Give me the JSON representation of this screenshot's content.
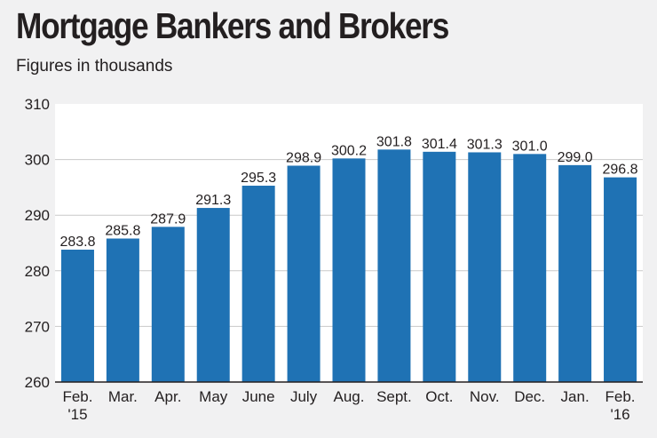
{
  "title": "Mortgage Bankers and Brokers",
  "subtitle": "Figures in thousands",
  "colors": {
    "bar": "#1f72b4",
    "grid": "#c9c9c9",
    "background": "#f1f1f2",
    "plot_background": "#ffffff"
  },
  "chart_data": {
    "type": "bar",
    "title": "Mortgage Bankers and Brokers",
    "subtitle": "Figures in thousands",
    "categories": [
      [
        "Feb.",
        "'15"
      ],
      [
        "Mar."
      ],
      [
        "Apr."
      ],
      [
        "May"
      ],
      [
        "June"
      ],
      [
        "July"
      ],
      [
        "Aug."
      ],
      [
        "Sept."
      ],
      [
        "Oct."
      ],
      [
        "Nov."
      ],
      [
        "Dec."
      ],
      [
        "Jan."
      ],
      [
        "Feb.",
        "'16"
      ]
    ],
    "values": [
      283.8,
      285.8,
      287.9,
      291.3,
      295.3,
      298.9,
      300.2,
      301.8,
      301.4,
      301.3,
      301.0,
      299.0,
      296.8
    ],
    "value_labels": [
      "283.8",
      "285.8",
      "287.9",
      "291.3",
      "295.3",
      "298.9",
      "300.2",
      "301.8",
      "301.4",
      "301.3",
      "301.0",
      "299.0",
      "296.8"
    ],
    "yticks": [
      "260",
      "270",
      "280",
      "290",
      "300",
      "310"
    ],
    "ylim": [
      260,
      310
    ],
    "grid": true,
    "xlabel": "",
    "ylabel": ""
  }
}
